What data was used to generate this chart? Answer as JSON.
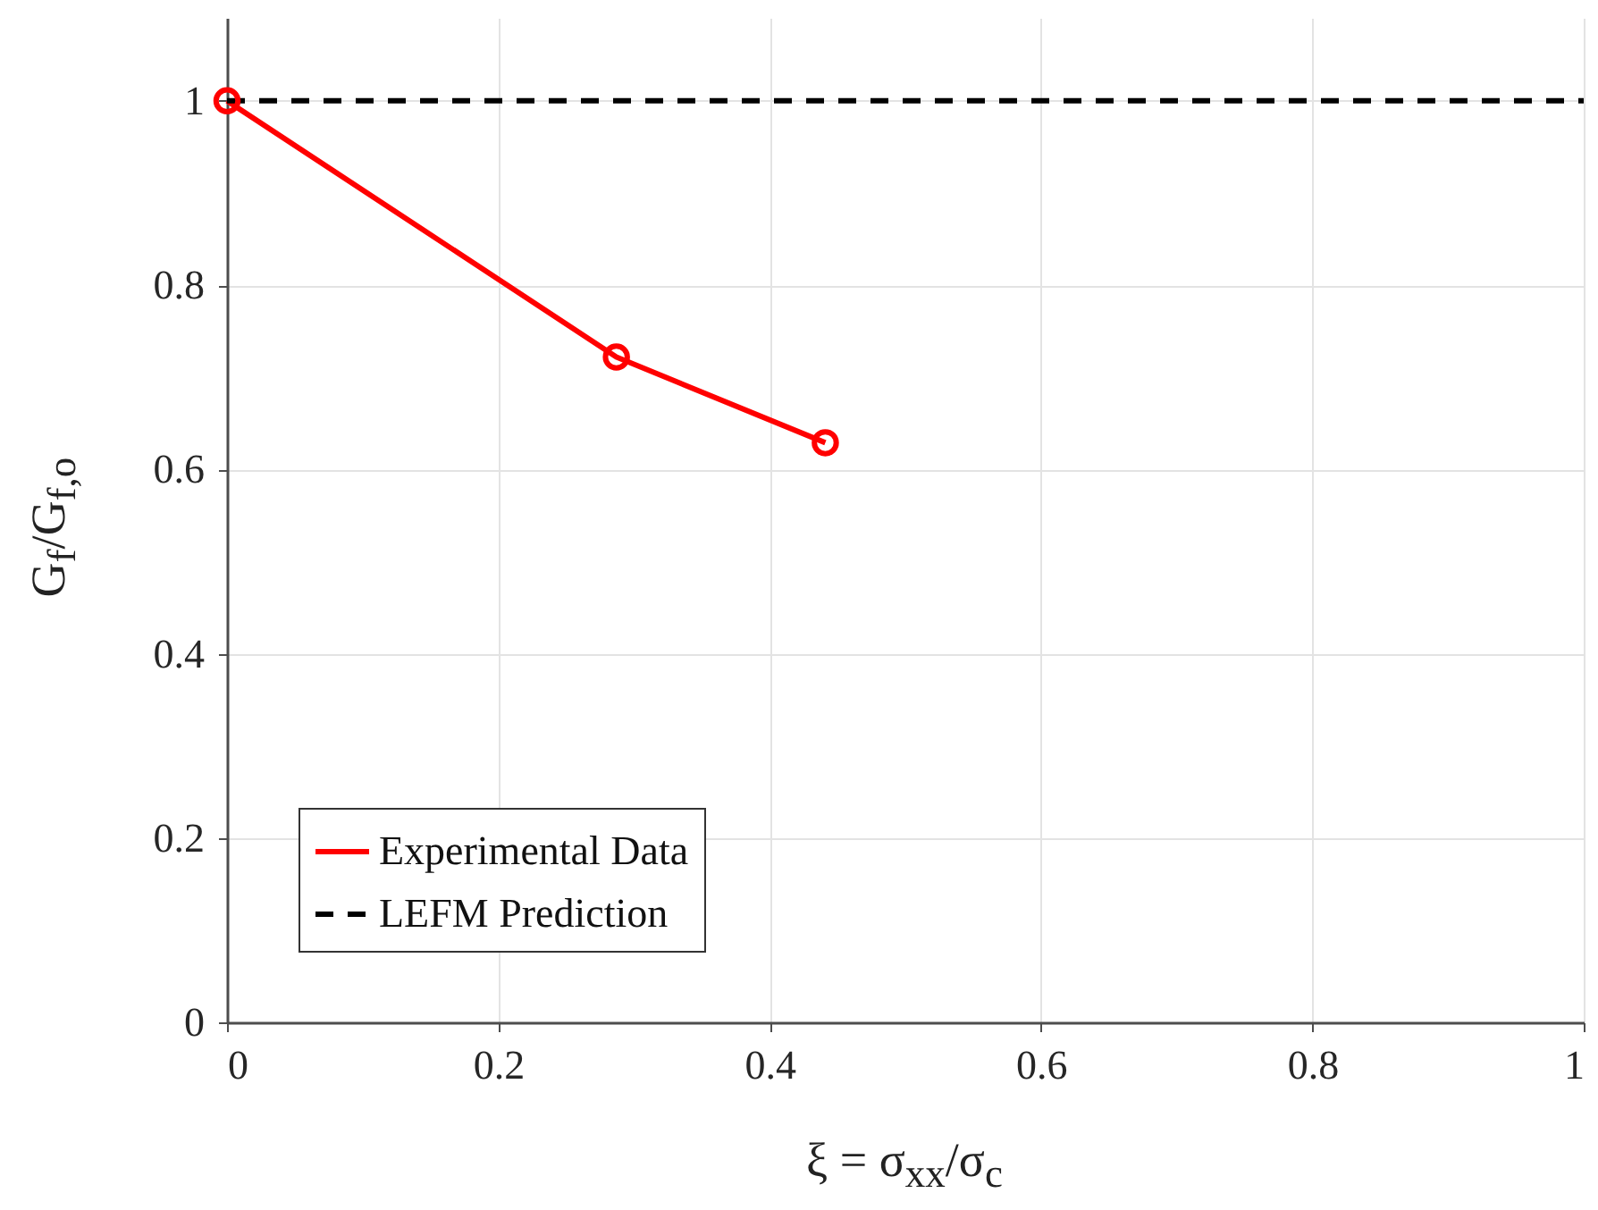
{
  "chart_data": {
    "type": "line",
    "xlabel": "ξ = σ$_{xx}$/σ$_{c}$",
    "ylabel": "G$_{f}$/G$_{f,o}$",
    "xlim": [
      0,
      1
    ],
    "xticks": [
      0,
      0.2,
      0.4,
      0.6,
      0.8,
      1
    ],
    "ylim": [
      0,
      1.09
    ],
    "yticks": [
      0,
      0.2,
      0.4,
      0.6,
      0.8,
      1
    ],
    "grid": true,
    "legend": "bottom left",
    "series": [
      {
        "name": "Experimental Data",
        "color": "#ff0000",
        "x": [
          0,
          0.287,
          0.441
        ],
        "values": [
          1.0,
          0.722,
          0.629
        ],
        "marker": "circle",
        "line_style": "solid"
      },
      {
        "name": "LEFM Prediction",
        "color": "#000000",
        "x": [
          0,
          1
        ],
        "values": [
          1,
          1
        ],
        "marker": "none",
        "line_style": "dashed"
      }
    ]
  }
}
